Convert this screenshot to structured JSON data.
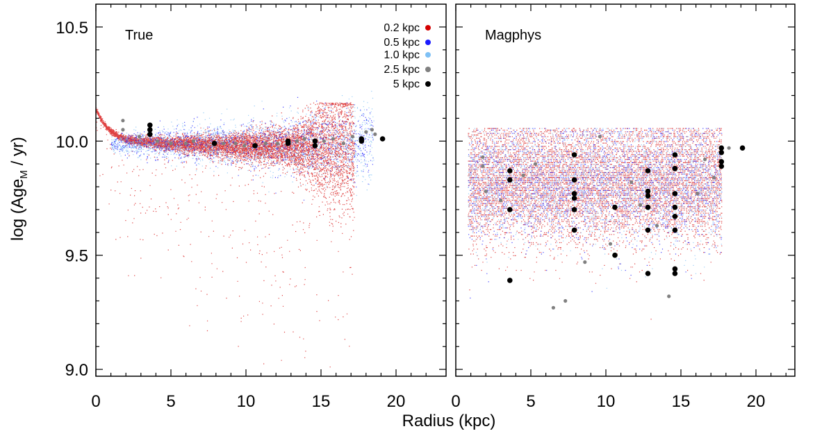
{
  "chart_data": {
    "type": "scatter",
    "ylabel_prefix": "log (Age",
    "ylabel_sub": "M",
    "ylabel_suffix": " / yr)",
    "xlabel": "Radius (kpc)",
    "xlim": [
      0,
      22
    ],
    "ylim": [
      8.97,
      10.6
    ],
    "x_ticks": [
      0,
      5,
      10,
      15,
      20
    ],
    "y_ticks": [
      9.0,
      9.5,
      10.0,
      10.5
    ],
    "y_tick_labels": [
      "9.0",
      "9.5",
      "10.0",
      "10.5"
    ],
    "legend": [
      {
        "label": "0.2 kpc",
        "color": "#d40000"
      },
      {
        "label": "0.5 kpc",
        "color": "#1a1aff"
      },
      {
        "label": "1.0 kpc",
        "color": "#7ec0f5"
      },
      {
        "label": "2.5 kpc",
        "color": "#808080"
      },
      {
        "label": "5 kpc",
        "color": "#000000"
      }
    ],
    "panels": [
      {
        "title": "True",
        "series": [
          {
            "name": "5 kpc",
            "color": "#000000",
            "points": [
              [
                3.6,
                10.03
              ],
              [
                3.6,
                10.05
              ],
              [
                3.6,
                10.07
              ],
              [
                7.9,
                9.99
              ],
              [
                10.6,
                9.98
              ],
              [
                12.8,
                9.99
              ],
              [
                12.8,
                10.0
              ],
              [
                14.6,
                9.98
              ],
              [
                14.6,
                10.0
              ],
              [
                17.7,
                10.0
              ],
              [
                17.7,
                10.01
              ],
              [
                19.1,
                10.01
              ]
            ]
          },
          {
            "name": "2.5 kpc",
            "color": "#808080",
            "points": [
              [
                1.8,
                10.05
              ],
              [
                1.8,
                10.09
              ],
              [
                2.9,
                10.02
              ],
              [
                4.1,
                10.0
              ],
              [
                5.0,
                9.99
              ],
              [
                6.0,
                9.99
              ],
              [
                6.5,
                10.0
              ],
              [
                8.5,
                9.99
              ],
              [
                9.3,
                9.99
              ],
              [
                9.9,
                9.98
              ],
              [
                11.3,
                9.99
              ],
              [
                12.1,
                9.99
              ],
              [
                13.4,
                10.0
              ],
              [
                13.9,
                10.01
              ],
              [
                15.2,
                10.0
              ],
              [
                15.8,
                10.01
              ],
              [
                16.5,
                9.99
              ],
              [
                17.1,
                10.02
              ],
              [
                18.0,
                10.04
              ],
              [
                18.4,
                10.05
              ],
              [
                18.6,
                10.03
              ]
            ]
          }
        ],
        "clouds": [
          {
            "name": "0.2 kpc",
            "color": "#d40000",
            "count": 9000
          },
          {
            "name": "0.5 kpc",
            "color": "#1a1aff",
            "count": 1200
          },
          {
            "name": "1.0 kpc",
            "color": "#7ec0f5",
            "count": 1800
          }
        ]
      },
      {
        "title": "Magphys",
        "series": [
          {
            "name": "5 kpc",
            "color": "#000000",
            "points": [
              [
                3.6,
                9.87
              ],
              [
                3.6,
                9.83
              ],
              [
                3.6,
                9.7
              ],
              [
                3.6,
                9.39
              ],
              [
                7.9,
                9.94
              ],
              [
                7.9,
                9.83
              ],
              [
                7.9,
                9.77
              ],
              [
                7.9,
                9.75
              ],
              [
                7.9,
                9.7
              ],
              [
                7.9,
                9.61
              ],
              [
                10.6,
                9.71
              ],
              [
                10.6,
                9.5
              ],
              [
                12.8,
                9.87
              ],
              [
                12.8,
                9.78
              ],
              [
                12.8,
                9.76
              ],
              [
                12.8,
                9.71
              ],
              [
                12.8,
                9.61
              ],
              [
                12.8,
                9.42
              ],
              [
                14.6,
                9.94
              ],
              [
                14.6,
                9.88
              ],
              [
                14.6,
                9.77
              ],
              [
                14.6,
                9.71
              ],
              [
                14.6,
                9.67
              ],
              [
                14.6,
                9.61
              ],
              [
                14.6,
                9.44
              ],
              [
                14.6,
                9.42
              ],
              [
                17.7,
                9.97
              ],
              [
                17.7,
                9.95
              ],
              [
                17.7,
                9.91
              ],
              [
                17.7,
                9.89
              ],
              [
                19.1,
                9.97
              ]
            ]
          },
          {
            "name": "2.5 kpc",
            "color": "#808080",
            "points": [
              [
                1.8,
                9.93
              ],
              [
                1.8,
                9.89
              ],
              [
                2.0,
                9.78
              ],
              [
                3.0,
                9.74
              ],
              [
                4.5,
                9.85
              ],
              [
                5.3,
                9.9
              ],
              [
                6.5,
                9.27
              ],
              [
                7.3,
                9.3
              ],
              [
                8.6,
                9.47
              ],
              [
                9.6,
                10.02
              ],
              [
                10.3,
                9.55
              ],
              [
                11.7,
                9.82
              ],
              [
                12.3,
                9.72
              ],
              [
                13.4,
                9.63
              ],
              [
                14.2,
                9.32
              ],
              [
                16.1,
                9.77
              ],
              [
                16.6,
                9.92
              ],
              [
                17.2,
                9.84
              ],
              [
                18.2,
                9.97
              ]
            ]
          }
        ],
        "clouds": [
          {
            "name": "0.2 kpc",
            "color": "#d40000",
            "count": 9000
          },
          {
            "name": "0.5 kpc",
            "color": "#1a1aff",
            "count": 2500
          },
          {
            "name": "1.0 kpc",
            "color": "#7ec0f5",
            "count": 2200
          }
        ]
      }
    ]
  }
}
